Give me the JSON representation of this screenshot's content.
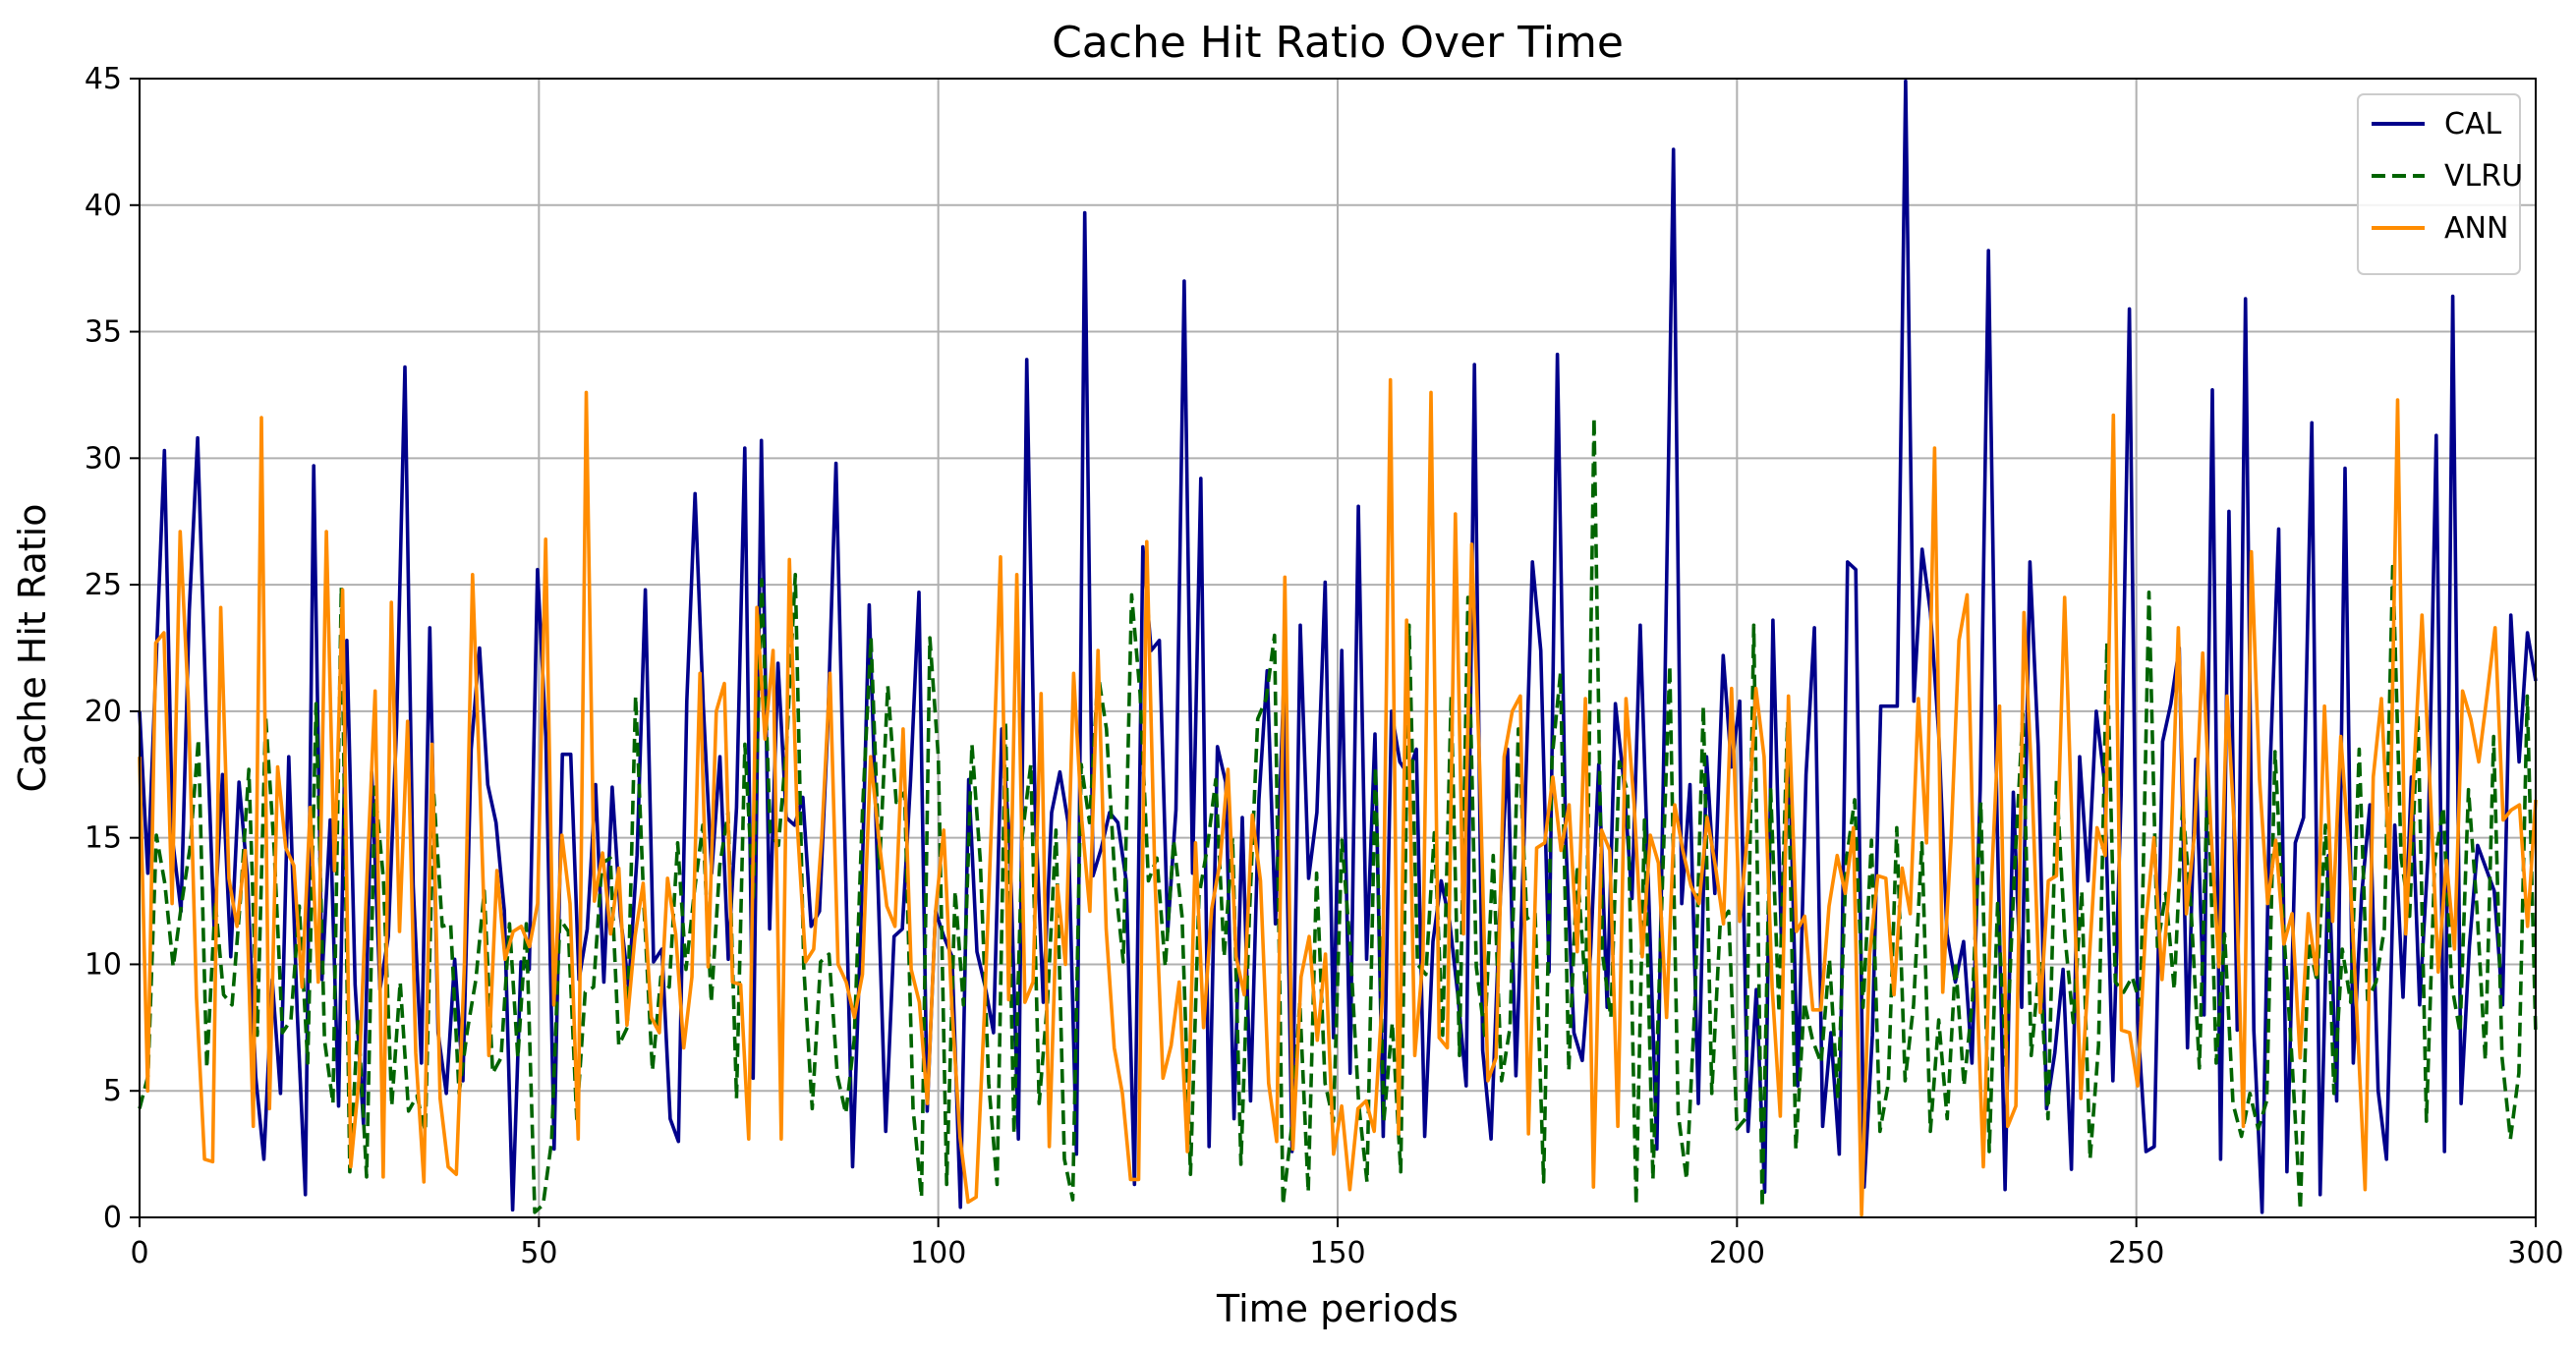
{
  "chart_data": {
    "type": "line",
    "title": "Cache Hit Ratio Over Time",
    "xlabel": "Time periods",
    "ylabel": "Cache Hit Ratio",
    "xlim": [
      0,
      300
    ],
    "ylim": [
      0,
      45
    ],
    "xticks": [
      0,
      50,
      100,
      150,
      200,
      250,
      300
    ],
    "yticks": [
      0,
      5,
      10,
      15,
      20,
      25,
      30,
      35,
      40,
      45
    ],
    "grid": true,
    "legend_position": "top-right",
    "series": [
      {
        "name": "CAL",
        "color": "#00008b",
        "style": "solid",
        "values": [
          20,
          13.6,
          22,
          30.3,
          14.9,
          12.1,
          24,
          30.8,
          20.3,
          11.4,
          17.5,
          10.3,
          17.2,
          13.5,
          5.6,
          2.3,
          9.4,
          4.9,
          18.2,
          8.2,
          0.9,
          29.7,
          9.4,
          15.7,
          4.4,
          22.8,
          9.2,
          3.7,
          17.6,
          9,
          11.1,
          19.4,
          33.6,
          13.1,
          6.1,
          23.3,
          7.3,
          4.9,
          10.2,
          5.4,
          18.5,
          22.5,
          17.1,
          15.6,
          12.1,
          0.3,
          10.1,
          9.8,
          25.6,
          19,
          2.7,
          18.3,
          18.3,
          9.4,
          11.4,
          17.1,
          9.3,
          17,
          11.9,
          9.1,
          14.3,
          24.8,
          10.1,
          10.6,
          3.9,
          3,
          20.4,
          28.6,
          20.2,
          13.6,
          18.2,
          10.2,
          16.2,
          30.4,
          5.5,
          30.7,
          11.4,
          21.9,
          15.8,
          15.5,
          16.6,
          11.5,
          12.1,
          19.4,
          29.8,
          15.8,
          2,
          11.5,
          24.2,
          13.8,
          3.4,
          11.1,
          11.4,
          17.3,
          24.7,
          4.2,
          12.1,
          11.1,
          10.3,
          0.4,
          17.3,
          10.5,
          9.1,
          7.3,
          19.3,
          14.5,
          3.1,
          33.9,
          16.3,
          8.5,
          16,
          17.6,
          15.6,
          2.5,
          39.7,
          13.5,
          14.6,
          16,
          15.6,
          13.3,
          1.3,
          26.5,
          22.4,
          22.8,
          11.3,
          16.1,
          37,
          13.6,
          29.2,
          2.8,
          18.6,
          17.2,
          3.9,
          15.8,
          4.6,
          16.5,
          21.6,
          11.6,
          21.1,
          2.6,
          23.4,
          13.4,
          16,
          25.1,
          7.1,
          22.4,
          5.7,
          28.1,
          10.2,
          19.1,
          3.2,
          20,
          18,
          17.5,
          18.5,
          3.2,
          10.9,
          13.3,
          11.7,
          8.8,
          5.2,
          33.7,
          6.6,
          3.1,
          11.7,
          18.5,
          5.6,
          15.1,
          25.9,
          22.4,
          9.7,
          34.1,
          15,
          7.3,
          6.2,
          10.4,
          17.9,
          8.3,
          20.3,
          17.3,
          12.6,
          23.4,
          13,
          2.7,
          21.4,
          42.2,
          12.4,
          17.1,
          4.5,
          18.2,
          12.8,
          22.2,
          17.8,
          20.4,
          3.4,
          9,
          1,
          23.6,
          11.2,
          18,
          5.2,
          17.5,
          23.3,
          3.6,
          7.3,
          2.5,
          25.9,
          25.6,
          1.2,
          7.2,
          20.2,
          20.2,
          20.2,
          44.9,
          20.4,
          26.4,
          23.9,
          19.1,
          11.2,
          9.3,
          10.9,
          6.1,
          16.9,
          38.2,
          16.3,
          1.1,
          16.8,
          8.3,
          25.9,
          18.6,
          4.3,
          6.5,
          9.8,
          1.9,
          18.2,
          13.3,
          20,
          17.2,
          5.4,
          16.7,
          35.9,
          7.7,
          2.6,
          2.8,
          18.8,
          20.3,
          22.5,
          6.7,
          18.1,
          8,
          32.7,
          2.3,
          27.9,
          7.4,
          36.3,
          7.4,
          0.2,
          18,
          27.2,
          1.8,
          14.8,
          15.8,
          31.4,
          0.9,
          14.3,
          4.6,
          29.6,
          6.1,
          12.7,
          16.3,
          5,
          2.3,
          15.5,
          8.7,
          17.4,
          8.4,
          14.2,
          30.9,
          2.6,
          36.4,
          4.5,
          10.7,
          14.7,
          13.8,
          12.9,
          8.4,
          23.8,
          18,
          23.1,
          21.2
        ]
      },
      {
        "name": "VLRU",
        "color": "#006400",
        "style": "dashed",
        "values": [
          4.3,
          5.6,
          15.1,
          13.2,
          9.9,
          12.4,
          14.6,
          18.9,
          5.9,
          12.5,
          8.8,
          8.4,
          12.6,
          17.7,
          7.2,
          19.8,
          14.6,
          7.3,
          7.8,
          12.3,
          6.1,
          20.3,
          7,
          4.5,
          24.9,
          1.8,
          7.9,
          1.6,
          17,
          13.4,
          4.4,
          9.3,
          4.2,
          4.8,
          3.4,
          16.7,
          11.5,
          11.6,
          4.9,
          7.4,
          9.4,
          12.9,
          5.7,
          6.3,
          11.6,
          6.3,
          11.6,
          0.2,
          0.5,
          3,
          11.8,
          11.3,
          3.9,
          8.9,
          9.1,
          14,
          14.2,
          6.8,
          7.5,
          20.6,
          12.2,
          5.8,
          9.5,
          9.1,
          14.8,
          9.8,
          12.9,
          15.5,
          8.5,
          13.9,
          16,
          4.7,
          18.7,
          12.5,
          25.2,
          15.2,
          14.7,
          18.9,
          25.4,
          9.9,
          4.3,
          10.1,
          10.4,
          5.6,
          4.1,
          7,
          16.2,
          22.9,
          13.8,
          21,
          16.4,
          16.8,
          4.3,
          0.8,
          22.9,
          18.2,
          1.3,
          12.9,
          8.4,
          18.7,
          14.1,
          5.3,
          1.3,
          19.6,
          3.3,
          15.1,
          17.9,
          4.5,
          8.6,
          15.3,
          2.3,
          0.7,
          17.9,
          15.6,
          21.5,
          19.3,
          13.4,
          10.1,
          24.6,
          20.7,
          13.3,
          14.2,
          9.9,
          14.9,
          11.9,
          1.7,
          12.7,
          14.6,
          17.3,
          10.3,
          15,
          2.1,
          11.9,
          19.7,
          20.5,
          23,
          0.5,
          3.5,
          8.5,
          1,
          13.6,
          5.3,
          3.8,
          14.9,
          10.7,
          4.5,
          1.4,
          17.8,
          3.8,
          7.7,
          1.8,
          23.4,
          10,
          9.6,
          15.2,
          7.2,
          20.6,
          6.4,
          24.5,
          9.9,
          7.2,
          14.3,
          5.4,
          7.5,
          19.3,
          11.8,
          12,
          1.4,
          18.1,
          21.5,
          5.8,
          13.9,
          8.9,
          31.6,
          10.4,
          7.9,
          18,
          16.8,
          0.5,
          15.7,
          1.5,
          11.8,
          21.8,
          4.1,
          1.5,
          8.5,
          20.2,
          4.9,
          11.6,
          12.1,
          3.5,
          3.9,
          23.4,
          0.4,
          16.9,
          8.1,
          19.6,
          2.7,
          8.5,
          7,
          6.1,
          10.2,
          4.7,
          14.1,
          16.5,
          8.3,
          14.9,
          3.4,
          5.3,
          15.4,
          5.4,
          8.4,
          14.8,
          3.4,
          7.8,
          3.9,
          10.1,
          5.2,
          8.6,
          16.4,
          2.6,
          12.4,
          6,
          13.6,
          19.9,
          6.4,
          10.1,
          3.9,
          17.3,
          11.1,
          7.7,
          12.9,
          2.3,
          6.8,
          22.7,
          9.3,
          8.9,
          9.5,
          8.4,
          24.7,
          10.7,
          12.8,
          9,
          16.3,
          12.2,
          5.9,
          17.7,
          6.1,
          11.2,
          4.5,
          3.2,
          4.9,
          3.5,
          4.6,
          18.4,
          11.5,
          6.3,
          0.3,
          10.9,
          9.3,
          15.5,
          4.9,
          10.6,
          8.5,
          18.5,
          8.6,
          9.3,
          11.4,
          25.9,
          14.2,
          11.9,
          19.9,
          3.8,
          14.1,
          16.2,
          9.2,
          7.3,
          16.9,
          12.3,
          6.2,
          19,
          6.3,
          3.1,
          5.7,
          20.6,
          7.2
        ]
      },
      {
        "name": "ANN",
        "color": "#ff8c00",
        "style": "solid",
        "values": [
          18.2,
          5,
          22.7,
          23.1,
          12.4,
          27.1,
          20.4,
          8.7,
          2.3,
          2.2,
          24.1,
          13.4,
          11.5,
          14.5,
          3.6,
          31.6,
          4.3,
          17.8,
          14.6,
          13.9,
          9.1,
          16.2,
          9.3,
          27.1,
          13.7,
          24.8,
          2,
          5.4,
          13.5,
          20.8,
          1.6,
          24.3,
          11.3,
          19.6,
          6.5,
          1.4,
          18.7,
          4.7,
          2,
          1.7,
          10.1,
          25.4,
          16.1,
          6.4,
          13.7,
          10.2,
          11.3,
          11.5,
          10.7,
          12.4,
          26.8,
          8.4,
          15.1,
          12.4,
          3.1,
          32.6,
          12.5,
          14.4,
          11.2,
          13.8,
          7.6,
          11.1,
          13.2,
          7.9,
          7.3,
          13.4,
          11.2,
          6.7,
          9.5,
          21.5,
          9.9,
          20,
          21.1,
          9.3,
          9.2,
          3.1,
          24.1,
          18.9,
          22.4,
          3.1,
          26,
          15.4,
          10.1,
          10.6,
          15.1,
          21.5,
          10,
          9.3,
          7.9,
          9.6,
          18.2,
          15,
          12.3,
          11.5,
          19.3,
          9.8,
          8.5,
          4.5,
          12.1,
          15.3,
          8.4,
          3.2,
          0.6,
          0.8,
          8,
          16.6,
          26.1,
          8.6,
          25.4,
          8.5,
          9.3,
          20.7,
          2.8,
          13.1,
          10,
          21.5,
          15.7,
          12.1,
          22.4,
          11.4,
          6.7,
          4.9,
          1.5,
          1.5,
          26.7,
          13.4,
          5.5,
          6.8,
          9.3,
          2.6,
          14.8,
          7.5,
          12.2,
          14,
          17.7,
          10.3,
          8.8,
          15.9,
          13.3,
          5.3,
          3,
          25.3,
          2.7,
          9.5,
          11.1,
          7,
          10.4,
          2.5,
          4.4,
          1.1,
          4.3,
          4.6,
          3.4,
          8.7,
          33.1,
          3.3,
          23.6,
          6.4,
          10.2,
          32.6,
          7.1,
          6.7,
          27.8,
          11.2,
          26.6,
          17.7,
          5.4,
          6.3,
          18.2,
          20,
          20.6,
          3.3,
          14.6,
          14.8,
          17.4,
          14.5,
          16.3,
          10.5,
          20.5,
          1.2,
          15.3,
          14.5,
          3.6,
          20.5,
          16.3,
          10.3,
          15.1,
          14,
          7.9,
          16.3,
          14.5,
          13.1,
          12.4,
          15.8,
          13.9,
          11.6,
          20.9,
          11.7,
          15.3,
          20.9,
          18.2,
          9.1,
          4,
          20.6,
          11.3,
          11.9,
          8.2,
          8.2,
          12.3,
          14.3,
          12.8,
          15.4,
          0.1,
          10.4,
          13.5,
          13.4,
          8.8,
          13.8,
          12,
          20.5,
          14.8,
          30.4,
          8.9,
          14.8,
          22.8,
          24.6,
          10.9,
          2,
          13.3,
          20.2,
          3.6,
          4.4,
          23.9,
          17,
          8.1,
          13.3,
          13.5,
          24.5,
          14.6,
          4.7,
          10,
          15.4,
          14.3,
          31.7,
          7.4,
          7.3,
          5.2,
          11.6,
          15,
          9.4,
          13.6,
          23.3,
          12,
          15.2,
          22.3,
          15.4,
          9.9,
          20.6,
          14.8,
          3.6,
          26.3,
          17.3,
          12.4,
          14.9,
          10.8,
          12,
          6.3,
          12,
          9.6,
          20.2,
          11.7,
          19,
          14.5,
          7.9,
          1.1,
          17.4,
          20.5,
          13.8,
          32.3,
          11.2,
          17.6,
          23.8,
          16.9,
          9.7,
          14.1,
          10.6,
          20.8,
          19.7,
          18,
          20.6,
          23.3,
          15.7,
          16.1,
          16.3,
          11.5,
          16.5
        ]
      }
    ]
  }
}
